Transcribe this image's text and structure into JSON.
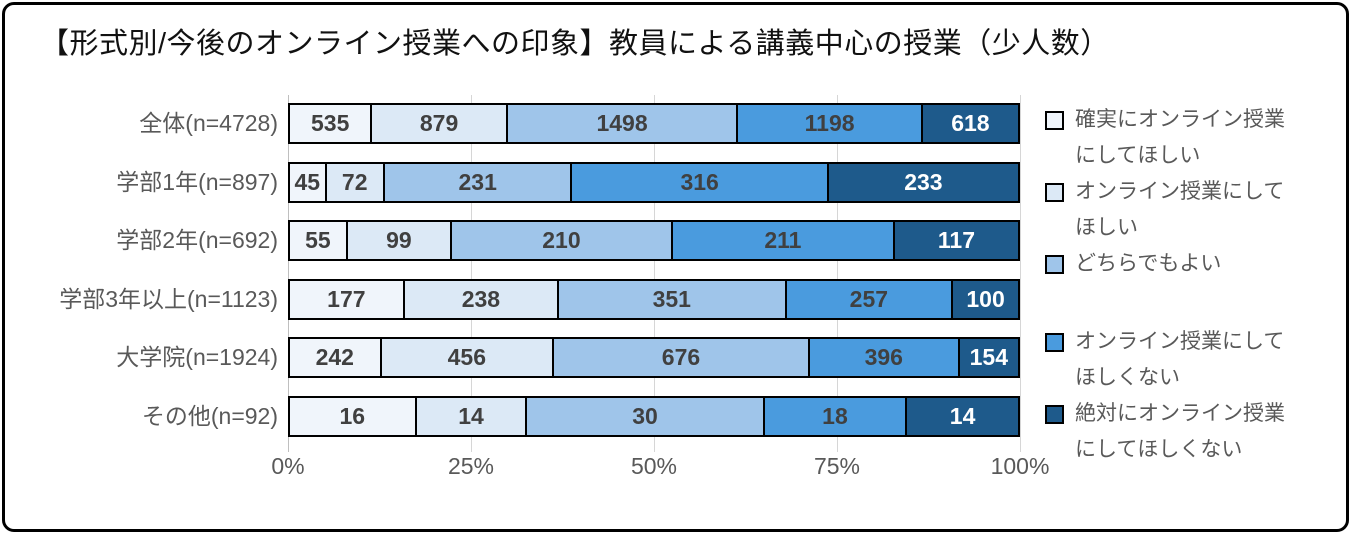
{
  "chart_data": {
    "type": "bar",
    "subtype": "horizontal-100%-stacked",
    "title": "【形式別/今後のオンライン授業への印象】教員による講義中心の授業（少人数）",
    "categories": [
      "全体(n=4728)",
      "学部1年(n=897)",
      "学部2年(n=692)",
      "学部3年以上(n=1123)",
      "大学院(n=1924)",
      "その他(n=92)"
    ],
    "series": [
      {
        "name": "確実にオンライン授業にしてほしい",
        "legend_lines": [
          "確実にオンライン授業",
          "にしてほしい"
        ],
        "color": "#F0F5FB",
        "label_color": "#404040",
        "values": [
          535,
          45,
          55,
          177,
          242,
          16
        ]
      },
      {
        "name": "オンライン授業にしてほしい",
        "legend_lines": [
          "オンライン授業にして",
          "ほしい"
        ],
        "color": "#DCE9F6",
        "label_color": "#404040",
        "values": [
          879,
          72,
          99,
          238,
          456,
          14
        ]
      },
      {
        "name": "どちらでもよい",
        "legend_lines": [
          "どちらでもよい"
        ],
        "color": "#9FC5EA",
        "label_color": "#404040",
        "values": [
          1498,
          231,
          210,
          351,
          676,
          30
        ]
      },
      {
        "name": "オンライン授業にしてほしくない",
        "legend_lines": [
          "オンライン授業にして",
          "ほしくない"
        ],
        "color": "#4A9BDE",
        "label_color": "#404040",
        "values": [
          1198,
          316,
          211,
          257,
          396,
          18
        ]
      },
      {
        "name": "絶対にオンライン授業にしてほしくない",
        "legend_lines": [
          "絶対にオンライン授業",
          "にしてほしくない"
        ],
        "color": "#1E5A8B",
        "label_color": "#FFFFFF",
        "values": [
          618,
          233,
          117,
          100,
          154,
          14
        ]
      }
    ],
    "x_axis_ticks": [
      "0%",
      "25%",
      "50%",
      "75%",
      "100%"
    ],
    "xlim": [
      0,
      100
    ],
    "grid": true,
    "legend_position": "right",
    "bar_border_color": "#000000",
    "grid_color": "#D6D6D6",
    "axis_text_color": "#595959"
  }
}
